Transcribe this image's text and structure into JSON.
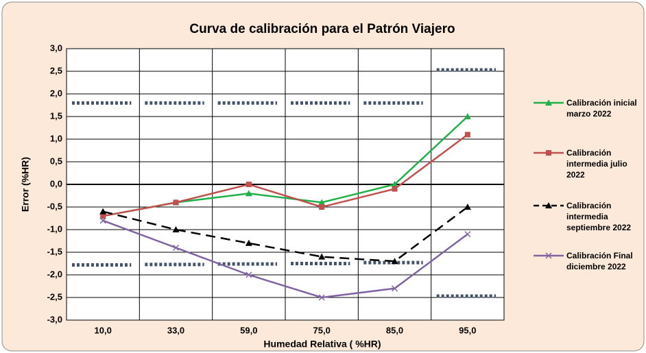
{
  "chart_data": {
    "type": "line",
    "title": "Curva de calibración para el Patrón Viajero",
    "xlabel": "Humedad Relativa ( %HR)",
    "ylabel": "Error (%HR)",
    "categories": [
      "10,0",
      "33,0",
      "59,0",
      "75,0",
      "85,0",
      "95,0"
    ],
    "series": [
      {
        "name": "Calibración inicial marzo 2022",
        "color": "#1fb04a",
        "marker": "triangle",
        "dashed": false,
        "values": [
          -0.7,
          -0.4,
          -0.2,
          -0.4,
          0.0,
          1.5
        ]
      },
      {
        "name": "Calibración intermedia julio 2022",
        "color": "#c0504d",
        "marker": "square",
        "dashed": false,
        "values": [
          -0.7,
          -0.4,
          0.0,
          -0.5,
          -0.1,
          1.1
        ]
      },
      {
        "name": "Calibración intermedia septiembre 2022",
        "color": "#000000",
        "marker": "triangle",
        "dashed": true,
        "values": [
          -0.6,
          -1.0,
          -1.3,
          -1.6,
          -1.7,
          -0.5
        ]
      },
      {
        "name": "Calibración Final diciembre 2022",
        "color": "#8064a2",
        "marker": "x",
        "dashed": false,
        "values": [
          -0.8,
          -1.4,
          -2.0,
          -2.5,
          -2.3,
          -1.1
        ]
      }
    ],
    "reference_lines": [
      {
        "color": "#44546a",
        "values": [
          1.8,
          1.8,
          1.8,
          1.8,
          1.8,
          2.53
        ]
      },
      {
        "color": "#44546a",
        "values": [
          -1.78,
          -1.77,
          -1.76,
          -1.75,
          -1.73,
          -2.47
        ]
      }
    ],
    "ylim": [
      -3.0,
      3.0
    ],
    "yticks": [
      {
        "value": -3.0,
        "label": "-3,0"
      },
      {
        "value": -2.5,
        "label": "-2,5"
      },
      {
        "value": -2.0,
        "label": "-2,0"
      },
      {
        "value": -1.5,
        "label": "-1,5"
      },
      {
        "value": -1.0,
        "label": "-1,0"
      },
      {
        "value": -0.5,
        "label": "-0,5"
      },
      {
        "value": 0.0,
        "label": "0,0"
      },
      {
        "value": 0.5,
        "label": "0,5"
      },
      {
        "value": 1.0,
        "label": "1,0"
      },
      {
        "value": 1.5,
        "label": "1,5"
      },
      {
        "value": 2.0,
        "label": "2,0"
      },
      {
        "value": 2.5,
        "label": "2,5"
      },
      {
        "value": 3.0,
        "label": "3,0"
      }
    ],
    "grid": true,
    "legend": "right"
  }
}
